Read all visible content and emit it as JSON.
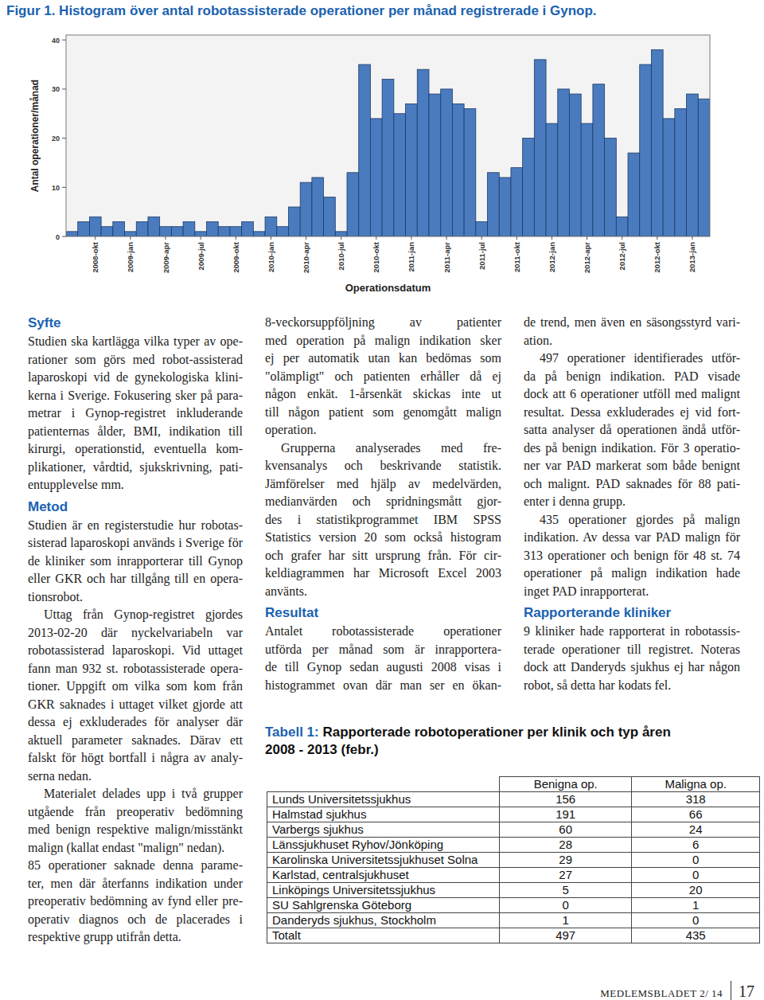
{
  "chart_data": {
    "type": "bar",
    "title": "Figur 1. Histogram över antal robotassisterade operationer per månad registrerade i Gynop.",
    "xlabel": "Operationsdatum",
    "ylabel": "Antal operationer/månad",
    "categories": [
      null,
      null,
      "2008-okt",
      null,
      null,
      "2009-jan",
      null,
      null,
      "2009-apr",
      null,
      null,
      "2009-jul",
      null,
      null,
      "2009-okt",
      null,
      null,
      "2010-jan",
      null,
      null,
      "2010-apr",
      null,
      null,
      "2010-jul",
      null,
      null,
      "2010-okt",
      null,
      null,
      "2011-jan",
      null,
      null,
      "2011-apr",
      null,
      null,
      "2011-jul",
      null,
      null,
      "2011-okt",
      null,
      null,
      "2012-jan",
      null,
      null,
      "2012-apr",
      null,
      null,
      "2012-jul",
      null,
      null,
      "2012-okt",
      null,
      null,
      "2013-jan",
      null
    ],
    "values": [
      1,
      3,
      4,
      2,
      3,
      1,
      3,
      4,
      2,
      2,
      3,
      1,
      3,
      2,
      2,
      3,
      1,
      4,
      2,
      6,
      11,
      12,
      8,
      1,
      13,
      35,
      24,
      32,
      25,
      27,
      34,
      29,
      30,
      27,
      26,
      3,
      13,
      12,
      14,
      20,
      36,
      23,
      30,
      29,
      23,
      31,
      20,
      4,
      17,
      35,
      38,
      24,
      26,
      29,
      28
    ],
    "color": "#4a7bbf",
    "ylim": [
      0,
      41
    ],
    "yticks": [
      0,
      10,
      20,
      30,
      40
    ],
    "grid": false
  },
  "columns": [
    [
      {
        "heading": "Syfte"
      },
      {
        "lines": [
          "Studien ska kartlägga vilka typer av ope-",
          "rationer som görs med robot-assisterad",
          "laparoskopi vid de gynekologiska klini-",
          "kerna i Sverige. Fokusering sker på para-",
          "metrar i Gynop-registret inkluderande",
          "patienternas ålder, BMI, indikation till",
          "kirurgi, operationstid, eventuella kom-",
          "plikationer, vårdtid, sjukskrivning, pati-",
          "entupplevelse mm."
        ]
      },
      {
        "heading": "Metod"
      },
      {
        "lines": [
          "Studien är en registerstudie hur robotas-",
          "sisterad laparoskopi används i Sverige för",
          "de kliniker som inrapporterar till Gynop",
          "eller GKR och har tillgång till en opera-",
          "tionsrobot."
        ]
      },
      {
        "lines": [
          "Uttag från Gynop-registret gjordes",
          "2013-02-20 där nyckelvariabeln var",
          "robotassisterad laparoskopi. Vid uttaget",
          "fann man 932 st. robotassisterade opera-",
          "tioner. Uppgift om vilka som kom från",
          "GKR saknades i uttaget vilket gjorde att",
          "dessa ej exkluderades för analyser där",
          "aktuell parameter saknades. Därav ett",
          "falskt för högt bortfall i några av analy-",
          "serna nedan."
        ]
      },
      {
        "lines": [
          "Materialet delades upp i två grupper",
          "utgående från preoperativ bedömning",
          "med benign respektive malign/misstänkt",
          "malign (kallat endast \"malign\" nedan)."
        ]
      },
      {
        "lines": [
          "85 operationer saknade denna parame-",
          "ter, men där återfanns indikation under",
          "preoperativ bedömning av fynd eller pre-",
          "operativ diagnos och de placerades i",
          "respektive grupp utifrån detta."
        ]
      }
    ],
    [
      {
        "lines": [
          "8-veckorsuppföljning av patienter",
          "med operation på malign indikation sker",
          "ej per automatik utan kan bedömas som",
          "\"olämpligt\" och patienten erhåller då ej",
          "någon enkät. 1-årsenkät skickas inte ut",
          "till någon patient som genomgått malign",
          "operation."
        ]
      },
      {
        "lines": [
          "Grupperna analyserades med fre-",
          "kvensanalys och beskrivande statistik.",
          "Jämförelser med hjälp av medelvärden,",
          "medianvärden och spridningsmått gjor-",
          "des i statistikprogrammet IBM SPSS",
          "Statistics version 20 som också histogram",
          "och grafer har sitt ursprung från. För cir-",
          "keldiagrammen har Microsoft Excel 2003",
          "använts."
        ]
      },
      {
        "heading": "Resultat"
      },
      {
        "lines": [
          "Antalet robotassisterade operationer",
          "utförda per månad som är inrapportera-",
          "de till Gynop sedan augusti 2008 visas i",
          "histogrammet ovan där man ser en ökan-"
        ]
      }
    ],
    [
      {
        "lines": [
          "de trend, men även en säsongsstyrd vari-",
          "ation."
        ]
      },
      {
        "lines": [
          "497 operationer identifierades utför-",
          "da på benign indikation. PAD visade",
          "dock att 6 operationer utföll med malignt",
          "resultat. Dessa exkluderades ej vid fort-",
          "satta analyser då operationen ändå utför-",
          "des på benign indikation. För 3 operatio-",
          "ner var PAD markerat som både benignt",
          "och malignt. PAD saknades för 88 pati-",
          "enter i denna grupp."
        ]
      },
      {
        "lines": [
          "435 operationer gjordes på malign",
          "indikation. Av dessa var PAD malign för",
          "313 operationer och benign för 48 st. 74",
          "operationer på malign indikation hade",
          "inget PAD inrapporterat."
        ]
      },
      {
        "heading": "Rapporterande kliniker"
      },
      {
        "lines": [
          "9 kliniker hade rapporterat in robotassis-",
          "terade operationer till registret. Noteras",
          "dock att Danderyds sjukhus ej har någon",
          "robot, så detta har kodats fel."
        ]
      }
    ]
  ],
  "table": {
    "label": "Tabell 1:",
    "title": "Rapporterade robotoperationer per klinik och typ åren 2008 - 2013 (febr.)",
    "header": [
      "Benigna op.",
      "Maligna op."
    ],
    "rows": [
      [
        "Lunds Universitetssjukhus",
        156,
        318
      ],
      [
        "Halmstad sjukhus",
        191,
        66
      ],
      [
        "Varbergs sjukhus",
        60,
        24
      ],
      [
        "Länssjukhuset Ryhov/Jönköping",
        28,
        6
      ],
      [
        "Karolinska Universitetssjukhuset Solna",
        29,
        0
      ],
      [
        "Karlstad, centralsjukhuset",
        27,
        0
      ],
      [
        "Linköpings Universitetssjukhus",
        5,
        20
      ],
      [
        "SU Sahlgrenska Göteborg",
        0,
        1
      ],
      [
        "Danderyds sjukhus, Stockholm",
        1,
        0
      ],
      [
        "Totalt",
        497,
        435
      ]
    ]
  },
  "footer": {
    "publication": "MEDLEMSBLADET 2/ 14",
    "page": 17
  }
}
